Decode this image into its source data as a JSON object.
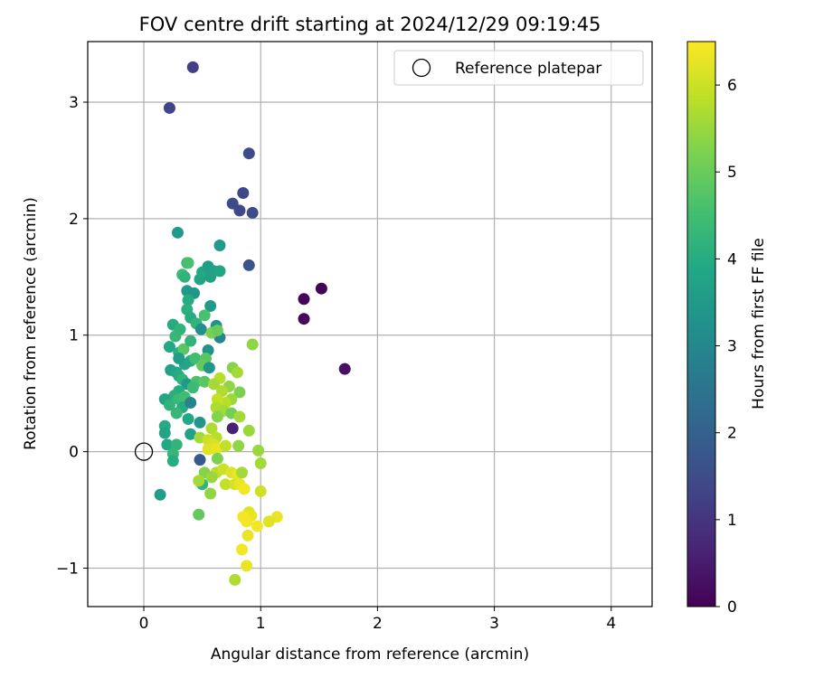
{
  "chart_data": {
    "type": "scatter",
    "title": "FOV centre drift starting at 2024/12/29 09:19:45",
    "xlabel": "Angular distance from reference (arcmin)",
    "ylabel": "Rotation from reference (arcmin)",
    "xlim": [
      -0.48,
      4.35
    ],
    "ylim": [
      -1.33,
      3.52
    ],
    "xticks": [
      0,
      1,
      2,
      3,
      4
    ],
    "xtick_labels": [
      "0",
      "1",
      "2",
      "3",
      "4"
    ],
    "yticks": [
      -1,
      0,
      1,
      2,
      3
    ],
    "ytick_labels": [
      "−1",
      "0",
      "1",
      "2",
      "3"
    ],
    "grid": true,
    "legend": {
      "position": "top-right",
      "entries": [
        "Reference platepar"
      ]
    },
    "reference_point": {
      "x": 0,
      "y": 0,
      "label": "Reference platepar"
    },
    "colorbar": {
      "label": "Hours from first FF file",
      "range": [
        0,
        6.5
      ],
      "ticks": [
        0,
        1,
        2,
        3,
        4,
        5,
        6
      ],
      "colormap": "viridis"
    },
    "points": [
      {
        "x": 0.42,
        "y": 3.3,
        "c": 1.2
      },
      {
        "x": 0.22,
        "y": 2.95,
        "c": 1.3
      },
      {
        "x": 0.9,
        "y": 2.56,
        "c": 1.5
      },
      {
        "x": 0.85,
        "y": 2.22,
        "c": 1.4
      },
      {
        "x": 0.76,
        "y": 2.13,
        "c": 1.5
      },
      {
        "x": 0.82,
        "y": 2.07,
        "c": 1.4
      },
      {
        "x": 0.93,
        "y": 2.05,
        "c": 1.5
      },
      {
        "x": 0.9,
        "y": 1.6,
        "c": 1.7
      },
      {
        "x": 1.37,
        "y": 1.31,
        "c": 0.1
      },
      {
        "x": 1.52,
        "y": 1.4,
        "c": 0.05
      },
      {
        "x": 1.37,
        "y": 1.14,
        "c": 0.15
      },
      {
        "x": 1.72,
        "y": 0.71,
        "c": 0.3
      },
      {
        "x": 0.76,
        "y": 0.2,
        "c": 0.6
      },
      {
        "x": 0.48,
        "y": -0.07,
        "c": 1.8
      },
      {
        "x": 0.29,
        "y": 1.88,
        "c": 3.5
      },
      {
        "x": 0.65,
        "y": 1.77,
        "c": 3.5
      },
      {
        "x": 0.37,
        "y": 1.62,
        "c": 4.3
      },
      {
        "x": 0.38,
        "y": 1.62,
        "c": 4.6
      },
      {
        "x": 0.33,
        "y": 1.52,
        "c": 4.4
      },
      {
        "x": 0.35,
        "y": 1.5,
        "c": 4.2
      },
      {
        "x": 0.48,
        "y": 1.48,
        "c": 3.8
      },
      {
        "x": 0.5,
        "y": 1.54,
        "c": 3.9
      },
      {
        "x": 0.55,
        "y": 1.59,
        "c": 3.6
      },
      {
        "x": 0.6,
        "y": 1.55,
        "c": 3.7
      },
      {
        "x": 0.65,
        "y": 1.55,
        "c": 3.8
      },
      {
        "x": 0.57,
        "y": 1.5,
        "c": 3.7
      },
      {
        "x": 0.37,
        "y": 1.38,
        "c": 3.5
      },
      {
        "x": 0.43,
        "y": 1.36,
        "c": 3.4
      },
      {
        "x": 0.38,
        "y": 1.3,
        "c": 4.0
      },
      {
        "x": 0.37,
        "y": 1.22,
        "c": 4.1
      },
      {
        "x": 0.57,
        "y": 1.25,
        "c": 3.5
      },
      {
        "x": 0.4,
        "y": 1.15,
        "c": 4.0
      },
      {
        "x": 0.45,
        "y": 1.1,
        "c": 4.2
      },
      {
        "x": 0.52,
        "y": 1.17,
        "c": 4.6
      },
      {
        "x": 0.62,
        "y": 1.08,
        "c": 3.3
      },
      {
        "x": 0.65,
        "y": 0.98,
        "c": 3.0
      },
      {
        "x": 0.49,
        "y": 1.05,
        "c": 3.2
      },
      {
        "x": 0.25,
        "y": 1.09,
        "c": 4.0
      },
      {
        "x": 0.31,
        "y": 1.05,
        "c": 4.2
      },
      {
        "x": 0.27,
        "y": 0.99,
        "c": 4.3
      },
      {
        "x": 0.58,
        "y": 1.02,
        "c": 5.2
      },
      {
        "x": 0.63,
        "y": 1.04,
        "c": 5.0
      },
      {
        "x": 0.22,
        "y": 0.9,
        "c": 3.9
      },
      {
        "x": 0.3,
        "y": 0.85,
        "c": 4.1
      },
      {
        "x": 0.34,
        "y": 0.88,
        "c": 4.8
      },
      {
        "x": 0.4,
        "y": 0.95,
        "c": 4.2
      },
      {
        "x": 0.55,
        "y": 0.87,
        "c": 3.3
      },
      {
        "x": 0.4,
        "y": 0.78,
        "c": 4.0
      },
      {
        "x": 0.35,
        "y": 0.75,
        "c": 3.8
      },
      {
        "x": 0.3,
        "y": 0.8,
        "c": 3.6
      },
      {
        "x": 0.44,
        "y": 0.8,
        "c": 4.5
      },
      {
        "x": 0.53,
        "y": 0.8,
        "c": 4.8
      },
      {
        "x": 0.5,
        "y": 0.74,
        "c": 4.9
      },
      {
        "x": 0.56,
        "y": 0.72,
        "c": 3.4
      },
      {
        "x": 0.23,
        "y": 0.7,
        "c": 3.7
      },
      {
        "x": 0.28,
        "y": 0.68,
        "c": 3.9
      },
      {
        "x": 0.3,
        "y": 0.65,
        "c": 4.0
      },
      {
        "x": 0.33,
        "y": 0.62,
        "c": 4.2
      },
      {
        "x": 0.37,
        "y": 0.58,
        "c": 3.5
      },
      {
        "x": 0.45,
        "y": 0.6,
        "c": 4.6
      },
      {
        "x": 0.52,
        "y": 0.6,
        "c": 4.8
      },
      {
        "x": 0.42,
        "y": 0.55,
        "c": 4.4
      },
      {
        "x": 0.3,
        "y": 0.52,
        "c": 4.0
      },
      {
        "x": 0.26,
        "y": 0.48,
        "c": 4.1
      },
      {
        "x": 0.18,
        "y": 0.45,
        "c": 3.8
      },
      {
        "x": 0.22,
        "y": 0.4,
        "c": 4.2
      },
      {
        "x": 0.3,
        "y": 0.45,
        "c": 4.4
      },
      {
        "x": 0.35,
        "y": 0.47,
        "c": 4.5
      },
      {
        "x": 0.33,
        "y": 0.38,
        "c": 4.0
      },
      {
        "x": 0.4,
        "y": 0.42,
        "c": 2.9
      },
      {
        "x": 0.28,
        "y": 0.33,
        "c": 4.3
      },
      {
        "x": 0.38,
        "y": 0.28,
        "c": 3.9
      },
      {
        "x": 0.48,
        "y": 0.25,
        "c": 3.4
      },
      {
        "x": 0.18,
        "y": 0.22,
        "c": 4.0
      },
      {
        "x": 0.18,
        "y": 0.16,
        "c": 3.8
      },
      {
        "x": 0.4,
        "y": 0.15,
        "c": 3.7
      },
      {
        "x": 0.2,
        "y": 0.06,
        "c": 3.9
      },
      {
        "x": 0.28,
        "y": 0.06,
        "c": 4.2
      },
      {
        "x": 0.25,
        "y": -0.02,
        "c": 4.3
      },
      {
        "x": 0.25,
        "y": -0.08,
        "c": 4.0
      },
      {
        "x": 0.14,
        "y": -0.37,
        "c": 3.6
      },
      {
        "x": 0.5,
        "y": -0.28,
        "c": 4.2
      },
      {
        "x": 0.47,
        "y": -0.54,
        "c": 4.9
      },
      {
        "x": 0.65,
        "y": 0.63,
        "c": 5.8
      },
      {
        "x": 0.6,
        "y": 0.58,
        "c": 5.6
      },
      {
        "x": 0.73,
        "y": 0.56,
        "c": 5.4
      },
      {
        "x": 0.67,
        "y": 0.52,
        "c": 5.7
      },
      {
        "x": 0.82,
        "y": 0.51,
        "c": 5.2
      },
      {
        "x": 0.76,
        "y": 0.72,
        "c": 5.3
      },
      {
        "x": 0.8,
        "y": 0.68,
        "c": 5.6
      },
      {
        "x": 0.93,
        "y": 0.92,
        "c": 5.4
      },
      {
        "x": 0.75,
        "y": 0.45,
        "c": 5.5
      },
      {
        "x": 0.7,
        "y": 0.42,
        "c": 5.8
      },
      {
        "x": 0.63,
        "y": 0.45,
        "c": 5.9
      },
      {
        "x": 0.62,
        "y": 0.38,
        "c": 5.7
      },
      {
        "x": 0.68,
        "y": 0.35,
        "c": 5.6
      },
      {
        "x": 0.75,
        "y": 0.33,
        "c": 5.1
      },
      {
        "x": 0.82,
        "y": 0.3,
        "c": 5.6
      },
      {
        "x": 0.63,
        "y": 0.3,
        "c": 5.3
      },
      {
        "x": 0.58,
        "y": 0.2,
        "c": 5.7
      },
      {
        "x": 0.62,
        "y": 0.12,
        "c": 5.8
      },
      {
        "x": 0.9,
        "y": 0.18,
        "c": 5.5
      },
      {
        "x": 0.48,
        "y": 0.12,
        "c": 5.6
      },
      {
        "x": 0.55,
        "y": 0.1,
        "c": 6.0
      },
      {
        "x": 0.6,
        "y": 0.06,
        "c": 6.1
      },
      {
        "x": 0.55,
        "y": 0.02,
        "c": 6.2
      },
      {
        "x": 0.62,
        "y": 0.02,
        "c": 6.3
      },
      {
        "x": 0.7,
        "y": 0.05,
        "c": 5.9
      },
      {
        "x": 0.81,
        "y": 0.05,
        "c": 5.4
      },
      {
        "x": 0.98,
        "y": 0.01,
        "c": 5.5
      },
      {
        "x": 1.0,
        "y": -0.1,
        "c": 5.6
      },
      {
        "x": 0.63,
        "y": -0.06,
        "c": 5.2
      },
      {
        "x": 0.52,
        "y": -0.18,
        "c": 5.3
      },
      {
        "x": 0.62,
        "y": -0.18,
        "c": 5.8
      },
      {
        "x": 0.58,
        "y": -0.22,
        "c": 5.5
      },
      {
        "x": 0.68,
        "y": -0.15,
        "c": 6.0
      },
      {
        "x": 0.75,
        "y": -0.18,
        "c": 6.2
      },
      {
        "x": 0.8,
        "y": -0.2,
        "c": 6.3
      },
      {
        "x": 0.84,
        "y": -0.18,
        "c": 5.6
      },
      {
        "x": 0.7,
        "y": -0.28,
        "c": 5.9
      },
      {
        "x": 0.78,
        "y": -0.28,
        "c": 6.1
      },
      {
        "x": 0.82,
        "y": -0.28,
        "c": 6.3
      },
      {
        "x": 0.86,
        "y": -0.32,
        "c": 6.4
      },
      {
        "x": 0.47,
        "y": -0.25,
        "c": 5.6
      },
      {
        "x": 0.57,
        "y": -0.36,
        "c": 5.4
      },
      {
        "x": 1.0,
        "y": -0.34,
        "c": 6.0
      },
      {
        "x": 0.9,
        "y": -0.52,
        "c": 6.2
      },
      {
        "x": 0.92,
        "y": -0.55,
        "c": 6.3
      },
      {
        "x": 0.85,
        "y": -0.56,
        "c": 6.4
      },
      {
        "x": 1.14,
        "y": -0.56,
        "c": 6.3
      },
      {
        "x": 0.88,
        "y": -0.6,
        "c": 6.4
      },
      {
        "x": 1.07,
        "y": -0.6,
        "c": 6.2
      },
      {
        "x": 0.97,
        "y": -0.64,
        "c": 6.4
      },
      {
        "x": 0.89,
        "y": -0.72,
        "c": 6.3
      },
      {
        "x": 0.84,
        "y": -0.84,
        "c": 6.4
      },
      {
        "x": 0.88,
        "y": -0.98,
        "c": 6.3
      },
      {
        "x": 0.78,
        "y": -1.1,
        "c": 5.7
      }
    ]
  }
}
